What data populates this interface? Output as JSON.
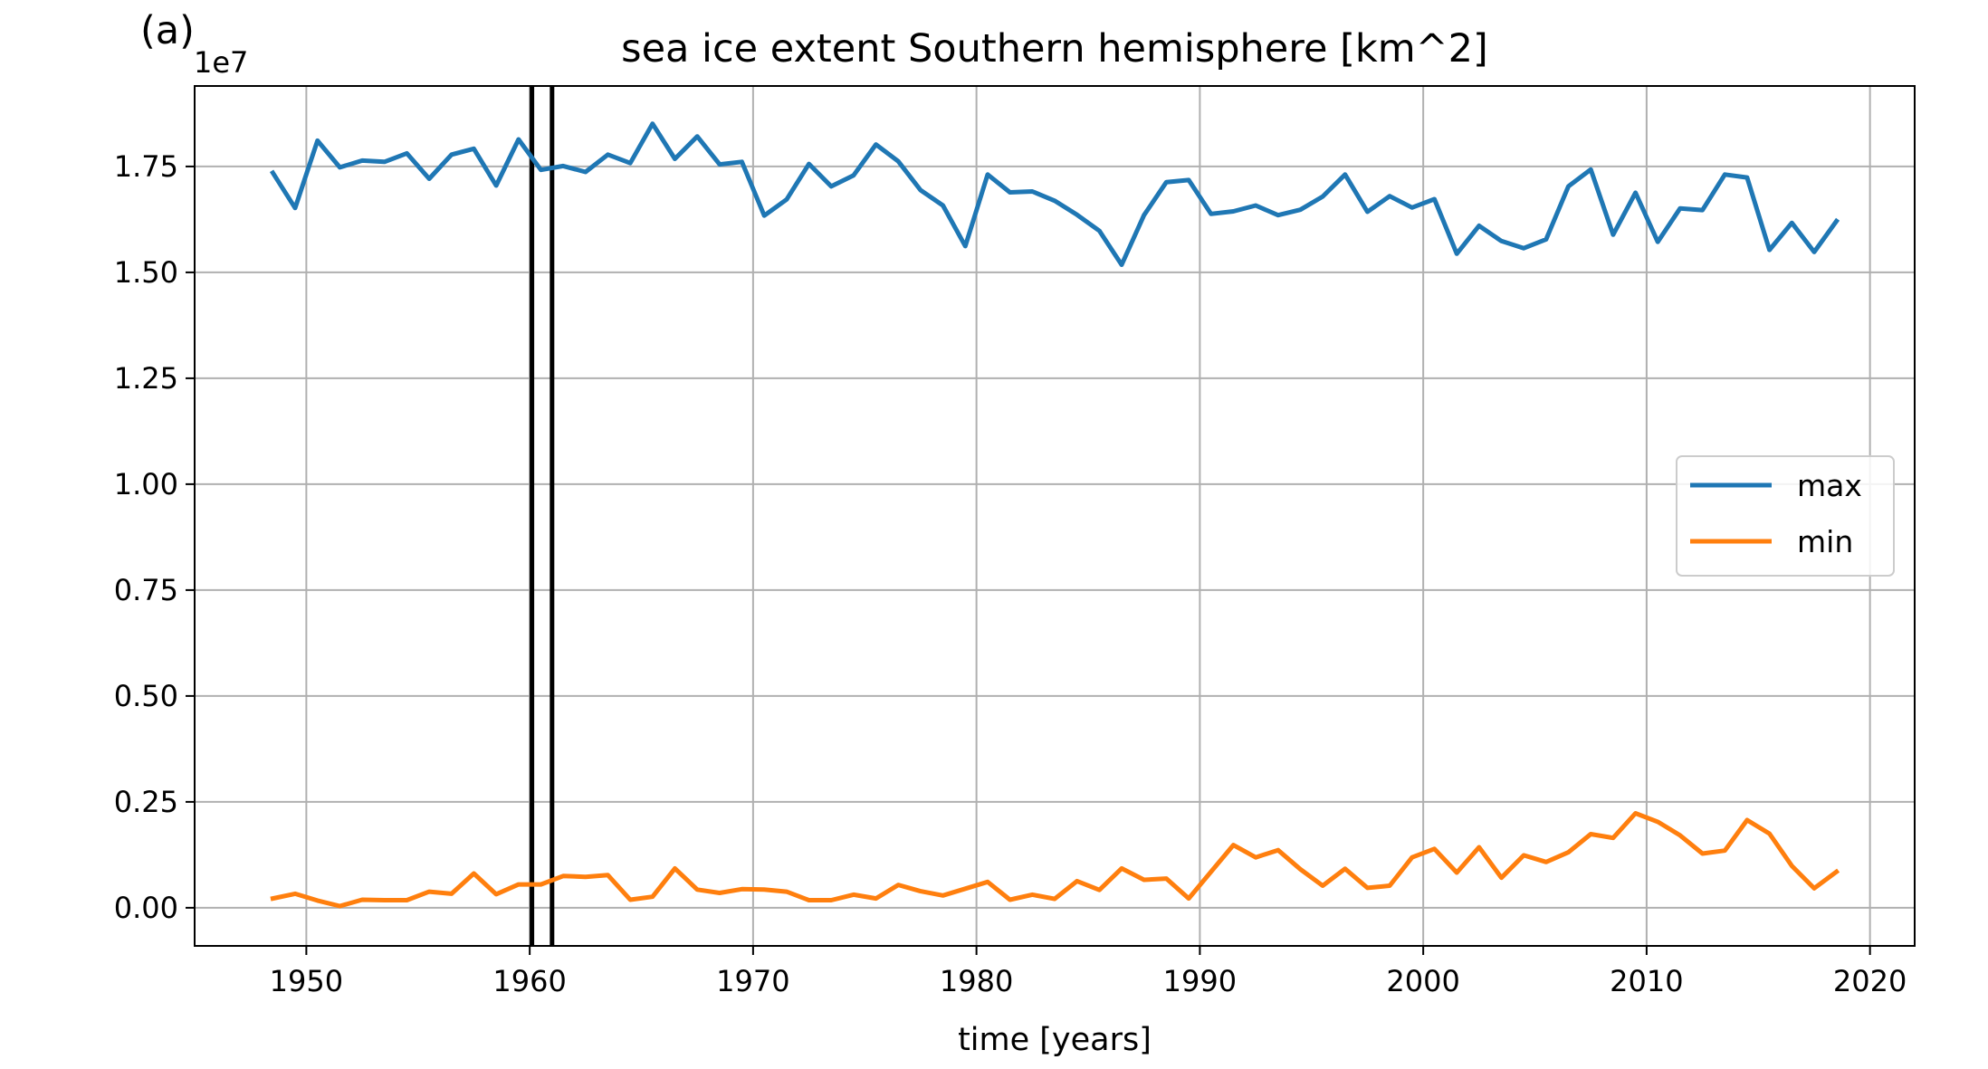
{
  "panel_label": "(a)",
  "chart_data": {
    "type": "line",
    "title": "sea ice extent Southern hemisphere [km^2]",
    "xlabel": "time [years]",
    "ylabel": "",
    "y_multiplier_label": "1e7",
    "xlim": [
      1945,
      2022
    ],
    "ylim": [
      -0.09,
      1.94
    ],
    "xticks": [
      1950,
      1960,
      1970,
      1980,
      1990,
      2000,
      2010,
      2020
    ],
    "xtick_labels": [
      "1950",
      "1960",
      "1970",
      "1980",
      "1990",
      "2000",
      "2010",
      "2020"
    ],
    "yticks": [
      0,
      0.25,
      0.5,
      0.75,
      1.0,
      1.25,
      1.5,
      1.75
    ],
    "ytick_labels": [
      "0.00",
      "0.25",
      "0.50",
      "0.75",
      "1.00",
      "1.25",
      "1.50",
      "1.75"
    ],
    "grid": true,
    "legend_position": "center-right",
    "vertical_lines": [
      1960.1,
      1961.0
    ],
    "vertical_line_color": "#000000",
    "x": [
      1948.5,
      1949.5,
      1950.5,
      1951.5,
      1952.5,
      1953.5,
      1954.5,
      1955.5,
      1956.5,
      1957.5,
      1958.5,
      1959.5,
      1960.5,
      1961.5,
      1962.5,
      1963.5,
      1964.5,
      1965.5,
      1966.5,
      1967.5,
      1968.5,
      1969.5,
      1970.5,
      1971.5,
      1972.5,
      1973.5,
      1974.5,
      1975.5,
      1976.5,
      1977.5,
      1978.5,
      1979.5,
      1980.5,
      1981.5,
      1982.5,
      1983.5,
      1984.5,
      1985.5,
      1986.5,
      1987.5,
      1988.5,
      1989.5,
      1990.5,
      1991.5,
      1992.5,
      1993.5,
      1994.5,
      1995.5,
      1996.5,
      1997.5,
      1998.5,
      1999.5,
      2000.5,
      2001.5,
      2002.5,
      2003.5,
      2004.5,
      2005.5,
      2006.5,
      2007.5,
      2008.5,
      2009.5,
      2010.5,
      2011.5,
      2012.5,
      2013.5,
      2014.5,
      2015.5,
      2016.5,
      2017.5,
      2018.5
    ],
    "series": [
      {
        "name": "max",
        "color": "#1f77b4",
        "values": [
          1.735,
          1.652,
          1.811,
          1.748,
          1.764,
          1.761,
          1.781,
          1.721,
          1.778,
          1.792,
          1.705,
          1.814,
          1.742,
          1.751,
          1.737,
          1.778,
          1.758,
          1.851,
          1.768,
          1.821,
          1.755,
          1.761,
          1.634,
          1.672,
          1.756,
          1.703,
          1.729,
          1.802,
          1.762,
          1.694,
          1.658,
          1.562,
          1.731,
          1.689,
          1.691,
          1.669,
          1.636,
          1.598,
          1.518,
          1.635,
          1.713,
          1.718,
          1.638,
          1.644,
          1.658,
          1.635,
          1.648,
          1.679,
          1.731,
          1.643,
          1.68,
          1.653,
          1.673,
          1.544,
          1.61,
          1.574,
          1.557,
          1.578,
          1.703,
          1.743,
          1.589,
          1.688,
          1.572,
          1.651,
          1.647,
          1.731,
          1.724,
          1.553,
          1.617,
          1.548,
          1.621
        ]
      },
      {
        "name": "min",
        "color": "#ff7f0e",
        "values": [
          0.022,
          0.033,
          0.017,
          0.004,
          0.019,
          0.018,
          0.018,
          0.038,
          0.033,
          0.081,
          0.032,
          0.055,
          0.055,
          0.075,
          0.073,
          0.077,
          0.019,
          0.026,
          0.093,
          0.043,
          0.035,
          0.044,
          0.043,
          0.038,
          0.018,
          0.018,
          0.031,
          0.022,
          0.054,
          0.039,
          0.029,
          0.045,
          0.061,
          0.019,
          0.031,
          0.021,
          0.063,
          0.042,
          0.093,
          0.066,
          0.069,
          0.022,
          0.085,
          0.148,
          0.119,
          0.136,
          0.091,
          0.052,
          0.092,
          0.047,
          0.052,
          0.119,
          0.139,
          0.083,
          0.143,
          0.071,
          0.124,
          0.108,
          0.131,
          0.174,
          0.165,
          0.223,
          0.203,
          0.171,
          0.128,
          0.135,
          0.207,
          0.175,
          0.099,
          0.046,
          0.085
        ]
      }
    ]
  }
}
